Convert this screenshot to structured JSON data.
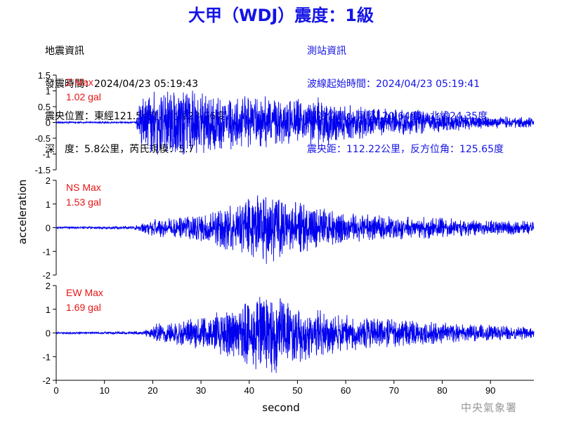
{
  "header": {
    "title": "大甲（WDJ）震度：1級"
  },
  "earthquake_info": {
    "heading": "地震資訊",
    "origin_time": "發震時間：2024/04/23 05:19:43",
    "epicenter": "震央位置：東經121.54度，北緯23.76度",
    "depth_magnitude": "深　度：5.8公里，芮氏規模：5.7"
  },
  "station_info": {
    "heading": "測站資訊",
    "wave_start": "波線起始時間：2024/04/23 05:19:41",
    "station_location": "測站位置：東經120.64度，北緯24.35度",
    "distance_azimuth": "震央距：112.22公里，反方位角：125.65度"
  },
  "watermark": "中央氣象署",
  "colors": {
    "title": "#1414e6",
    "station_text": "#1414e6",
    "trace": "#0000ee",
    "max_label": "#e61414",
    "axis": "#000000"
  },
  "chart_data": {
    "type": "line",
    "xlabel": "second",
    "ylabel": "acceleration",
    "x_range": [
      0,
      99
    ],
    "x_ticks": [
      0,
      10,
      20,
      30,
      40,
      50,
      60,
      70,
      80,
      90
    ],
    "x_tick_labels": [
      "0",
      "10",
      "20",
      "30",
      "40",
      "50",
      "60",
      "70",
      "80",
      "90"
    ],
    "panels": [
      {
        "name": "Z",
        "max_label": "Z Max",
        "max_value": "1.02 gal",
        "peak": 1.02,
        "ylim": [
          -1.5,
          1.5
        ],
        "y_ticks": [
          1.5,
          1,
          0.5,
          0,
          -0.5,
          -1,
          -1.5
        ],
        "y_tick_labels": [
          "1.5",
          "1",
          "0.5",
          "0",
          "-0.5",
          "-1",
          "-1.5"
        ],
        "envelope": [
          [
            0,
            0.02
          ],
          [
            16.5,
            0.02
          ],
          [
            17.5,
            0.55
          ],
          [
            19,
            0.7
          ],
          [
            22,
            0.75
          ],
          [
            25,
            0.8
          ],
          [
            28,
            0.75
          ],
          [
            32,
            0.7
          ],
          [
            38,
            0.6
          ],
          [
            45,
            0.6
          ],
          [
            50,
            0.55
          ],
          [
            55,
            0.6
          ],
          [
            60,
            0.45
          ],
          [
            65,
            0.35
          ],
          [
            70,
            0.3
          ],
          [
            75,
            0.3
          ],
          [
            80,
            0.22
          ],
          [
            85,
            0.18
          ],
          [
            90,
            0.15
          ],
          [
            99,
            0.12
          ]
        ]
      },
      {
        "name": "NS",
        "max_label": "NS Max",
        "max_value": "1.53 gal",
        "peak": 1.53,
        "ylim": [
          -2,
          2
        ],
        "y_ticks": [
          2,
          1,
          0,
          -1,
          -2
        ],
        "y_tick_labels": [
          "2",
          "1",
          "0",
          "-1",
          "-2"
        ],
        "envelope": [
          [
            0,
            0.03
          ],
          [
            16,
            0.05
          ],
          [
            20,
            0.25
          ],
          [
            26,
            0.35
          ],
          [
            32,
            0.45
          ],
          [
            36,
            0.7
          ],
          [
            40,
            0.9
          ],
          [
            44,
            1.1
          ],
          [
            48,
            0.9
          ],
          [
            52,
            0.7
          ],
          [
            56,
            0.55
          ],
          [
            60,
            0.45
          ],
          [
            65,
            0.4
          ],
          [
            70,
            0.35
          ],
          [
            75,
            0.35
          ],
          [
            80,
            0.3
          ],
          [
            85,
            0.25
          ],
          [
            90,
            0.22
          ],
          [
            99,
            0.2
          ]
        ]
      },
      {
        "name": "EW",
        "max_label": "EW Max",
        "max_value": "1.69 gal",
        "peak": 1.69,
        "ylim": [
          -2,
          2
        ],
        "y_ticks": [
          2,
          1,
          0,
          -1,
          -2
        ],
        "y_tick_labels": [
          "2",
          "1",
          "0",
          "-1",
          "-2"
        ],
        "envelope": [
          [
            0,
            0.03
          ],
          [
            18,
            0.05
          ],
          [
            20,
            0.25
          ],
          [
            26,
            0.35
          ],
          [
            32,
            0.5
          ],
          [
            36,
            0.7
          ],
          [
            40,
            0.9
          ],
          [
            44,
            1.2
          ],
          [
            48,
            0.95
          ],
          [
            52,
            0.75
          ],
          [
            56,
            0.6
          ],
          [
            60,
            0.5
          ],
          [
            65,
            0.45
          ],
          [
            70,
            0.4
          ],
          [
            75,
            0.35
          ],
          [
            80,
            0.3
          ],
          [
            85,
            0.25
          ],
          [
            90,
            0.22
          ],
          [
            99,
            0.18
          ]
        ]
      }
    ]
  }
}
